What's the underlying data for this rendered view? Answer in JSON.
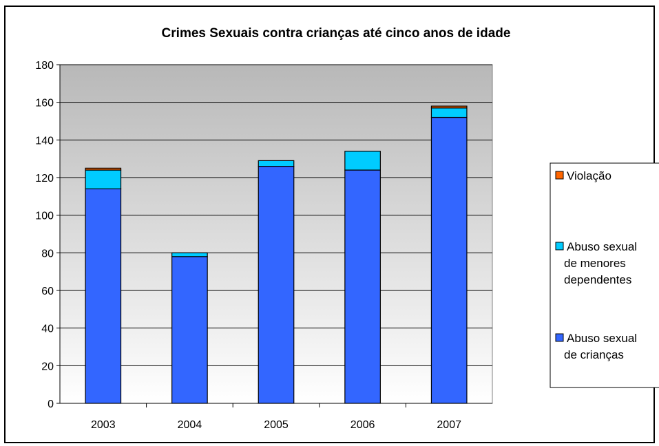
{
  "chart_data": {
    "type": "bar",
    "stacked": true,
    "title": "Crimes Sexuais contra crianças até cinco anos de idade",
    "categories": [
      "2003",
      "2004",
      "2005",
      "2006",
      "2007"
    ],
    "series": [
      {
        "name": "Abuso sexual de crianças",
        "legend_lines": [
          "Abuso sexual",
          "de crianças"
        ],
        "color": "#3366FF",
        "values": [
          114,
          78,
          126,
          124,
          152
        ]
      },
      {
        "name": "Abuso sexual de menores dependentes",
        "legend_lines": [
          "Abuso sexual",
          "de menores",
          "dependentes"
        ],
        "color": "#00CCFF",
        "values": [
          10,
          2,
          3,
          10,
          5
        ]
      },
      {
        "name": "Violação",
        "legend_lines": [
          "Violação"
        ],
        "color": "#FF6600",
        "values": [
          1,
          0,
          0,
          0,
          1
        ]
      }
    ],
    "ylim": [
      0,
      180
    ],
    "yticks": [
      "0",
      "20",
      "40",
      "60",
      "80",
      "100",
      "120",
      "140",
      "160",
      "180"
    ],
    "grid": true,
    "legend_position": "right",
    "plot_background": "gradient gray to white"
  }
}
